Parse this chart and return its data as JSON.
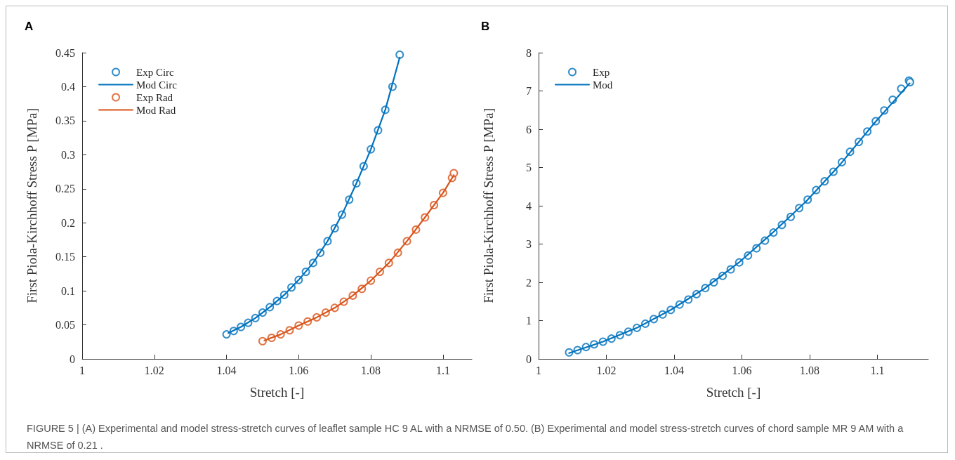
{
  "chart_data": [
    {
      "type": "scatter",
      "title": "A",
      "xlabel": "Stretch [-]",
      "ylabel": "First Piola-Kirchhoff Stress P [MPa]",
      "xlim": [
        1,
        1.108
      ],
      "xticks": [
        1,
        1.02,
        1.04,
        1.06,
        1.08,
        1.1
      ],
      "ylim": [
        0,
        0.45
      ],
      "yticks": [
        0,
        0.05,
        0.1,
        0.15,
        0.2,
        0.25,
        0.3,
        0.35,
        0.4,
        0.45
      ],
      "grid": false,
      "legend": "top left",
      "series": [
        {
          "name": "Exp Circ",
          "marker": "circle",
          "color": "#0072bd",
          "x": [
            1.04,
            1.042,
            1.044,
            1.046,
            1.048,
            1.05,
            1.052,
            1.054,
            1.056,
            1.058,
            1.06,
            1.062,
            1.064,
            1.066,
            1.068,
            1.07,
            1.072,
            1.074,
            1.076,
            1.078,
            1.08,
            1.082,
            1.084,
            1.086,
            1.088
          ],
          "values": [
            0.036,
            0.041,
            0.047,
            0.053,
            0.06,
            0.068,
            0.076,
            0.085,
            0.094,
            0.105,
            0.116,
            0.128,
            0.141,
            0.156,
            0.173,
            0.192,
            0.212,
            0.234,
            0.258,
            0.283,
            0.308,
            0.336,
            0.366,
            0.4,
            0.447
          ]
        },
        {
          "name": "Mod Circ",
          "type": "line",
          "marker": "none",
          "color": "#0072bd",
          "x": [
            1.0405,
            1.044,
            1.048,
            1.052,
            1.056,
            1.06,
            1.064,
            1.068,
            1.072,
            1.076,
            1.08,
            1.084,
            1.088
          ],
          "values": [
            0.038,
            0.047,
            0.06,
            0.076,
            0.094,
            0.116,
            0.141,
            0.173,
            0.212,
            0.258,
            0.308,
            0.366,
            0.443
          ]
        },
        {
          "name": "Exp Rad",
          "marker": "circle",
          "color": "#d95319",
          "x": [
            1.05,
            1.0525,
            1.055,
            1.0575,
            1.06,
            1.0625,
            1.065,
            1.0675,
            1.07,
            1.0725,
            1.075,
            1.0775,
            1.08,
            1.0825,
            1.085,
            1.0875,
            1.09,
            1.0925,
            1.095,
            1.0975,
            1.1,
            1.1025,
            1.103
          ],
          "values": [
            0.026,
            0.031,
            0.036,
            0.042,
            0.049,
            0.055,
            0.061,
            0.068,
            0.075,
            0.084,
            0.093,
            0.103,
            0.115,
            0.128,
            0.141,
            0.156,
            0.173,
            0.19,
            0.208,
            0.226,
            0.244,
            0.266,
            0.273
          ]
        },
        {
          "name": "Mod Rad",
          "type": "line",
          "marker": "none",
          "color": "#d95319",
          "x": [
            1.0505,
            1.055,
            1.06,
            1.065,
            1.07,
            1.075,
            1.08,
            1.085,
            1.09,
            1.095,
            1.1,
            1.103
          ],
          "values": [
            0.027,
            0.036,
            0.049,
            0.061,
            0.075,
            0.093,
            0.115,
            0.141,
            0.173,
            0.208,
            0.244,
            0.27
          ]
        }
      ]
    },
    {
      "type": "scatter",
      "title": "B",
      "xlabel": "Stretch [-]",
      "ylabel": "First Piola-Kirchhoff Stress P [MPa]",
      "xlim": [
        1,
        1.115
      ],
      "xticks": [
        1,
        1.02,
        1.04,
        1.06,
        1.08,
        1.1
      ],
      "ylim": [
        0,
        8
      ],
      "yticks": [
        0,
        1,
        2,
        3,
        4,
        5,
        6,
        7,
        8
      ],
      "grid": false,
      "legend": "top left",
      "annotations": [
        "FIGURE 5 | (A) Experimental and model stress-stretch curves of leaflet sample HC 9 AL with a NRMSE of 0.50. (B) Experimental and model stress-stretch curves of chord sample MR 9 AM with a NRMSE of 0.21 ."
      ],
      "series": [
        {
          "name": "Exp",
          "marker": "circle",
          "color": "#0072bd",
          "x": [
            1.009,
            1.0115,
            1.014,
            1.0164,
            1.019,
            1.0215,
            1.024,
            1.0265,
            1.029,
            1.0315,
            1.034,
            1.0366,
            1.039,
            1.0416,
            1.0442,
            1.0466,
            1.0492,
            1.0517,
            1.0543,
            1.0567,
            1.0592,
            1.0618,
            1.0643,
            1.0668,
            1.0693,
            1.0718,
            1.0744,
            1.0769,
            1.0794,
            1.0819,
            1.0844,
            1.087,
            1.0895,
            1.0919,
            1.0945,
            1.097,
            1.0995,
            1.102,
            1.1045,
            1.107,
            1.1093,
            1.1096
          ],
          "values": [
            0.17,
            0.23,
            0.31,
            0.38,
            0.45,
            0.53,
            0.62,
            0.71,
            0.81,
            0.92,
            1.04,
            1.16,
            1.28,
            1.42,
            1.55,
            1.69,
            1.85,
            2.0,
            2.17,
            2.34,
            2.52,
            2.7,
            2.89,
            3.09,
            3.3,
            3.5,
            3.71,
            3.94,
            4.16,
            4.41,
            4.64,
            4.89,
            5.14,
            5.41,
            5.67,
            5.94,
            6.21,
            6.49,
            6.77,
            7.06,
            7.27,
            7.23
          ]
        },
        {
          "name": "Mod",
          "type": "line",
          "marker": "none",
          "color": "#0072bd",
          "x": [
            1.009,
            1.019,
            1.029,
            1.039,
            1.049,
            1.059,
            1.069,
            1.079,
            1.089,
            1.099,
            1.1095
          ],
          "values": [
            0.15,
            0.45,
            0.81,
            1.28,
            1.84,
            2.51,
            3.29,
            4.12,
            5.08,
            6.15,
            7.2
          ]
        }
      ]
    }
  ]
}
